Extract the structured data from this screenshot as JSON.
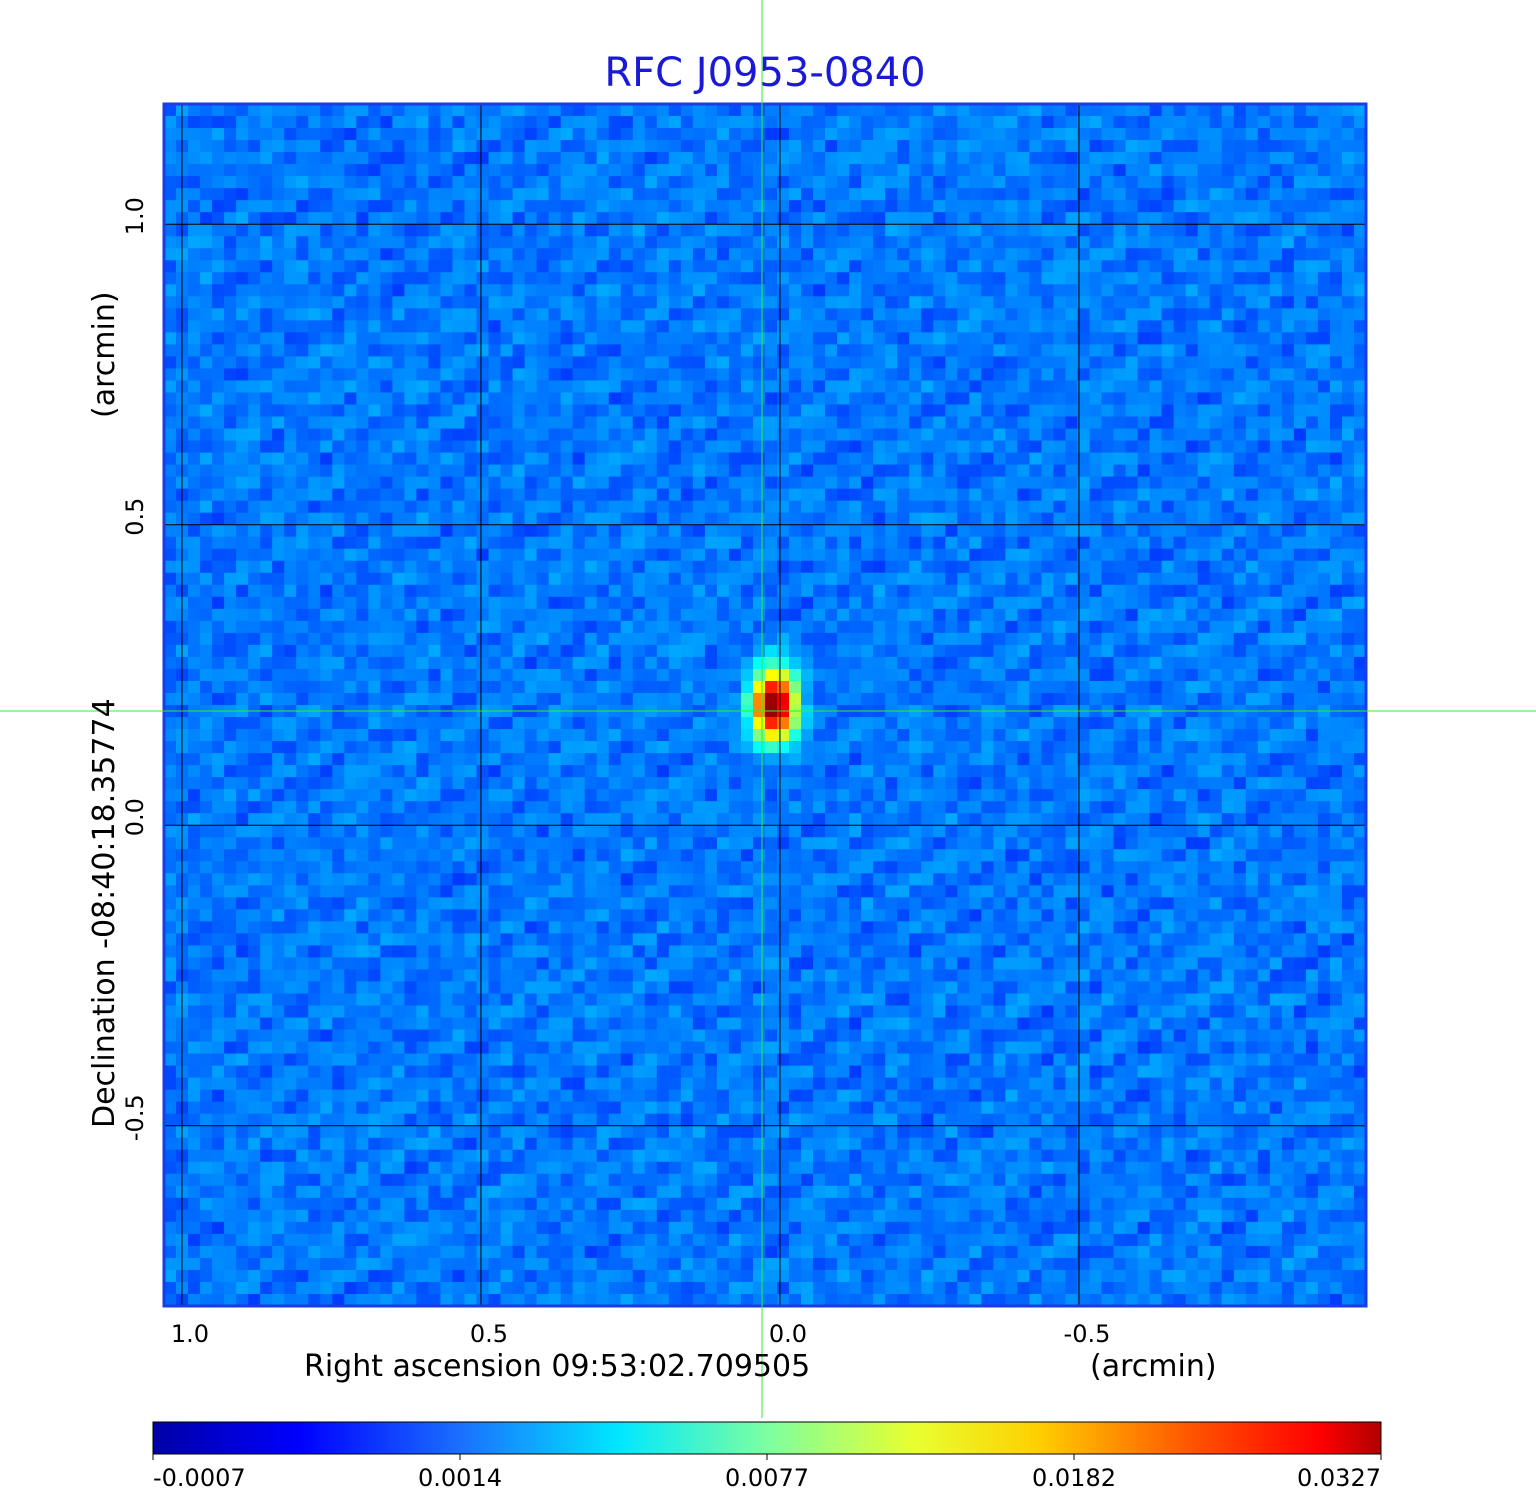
{
  "chart_data": {
    "type": "heatmap",
    "title": "RFC J0953-0840",
    "xlabel": "Right ascension  09:53:02.709505",
    "xunit": "(arcmin)",
    "ylabel": "Declination  -08:40:18.35774",
    "yunit": "(arcmin)",
    "x_ticks": [
      1.0,
      0.5,
      0.0,
      -0.5
    ],
    "x_tick_labels": [
      "1.0",
      "0.5",
      "0.0",
      "-0.5"
    ],
    "y_ticks": [
      1.0,
      0.5,
      0.0,
      -0.5
    ],
    "y_tick_labels": [
      "1.0",
      "0.5",
      "0.0",
      "-0.5"
    ],
    "xlim": [
      1.03,
      -0.98
    ],
    "ylim": [
      -0.8,
      1.2
    ],
    "grid": true,
    "crosshair": {
      "x": 0.03,
      "y": 0.19,
      "color": "#33ee33"
    },
    "peak": {
      "x": 0.01,
      "y": 0.2,
      "value": 0.0327
    },
    "colormap": "jet",
    "colorbar": {
      "position": "bottom",
      "min": -0.0007,
      "max": 0.0327,
      "tick_labels": [
        "-0.0007",
        "0.0014",
        "0.0077",
        "0.0182",
        "0.0327"
      ]
    },
    "background_level": 0.0005
  }
}
